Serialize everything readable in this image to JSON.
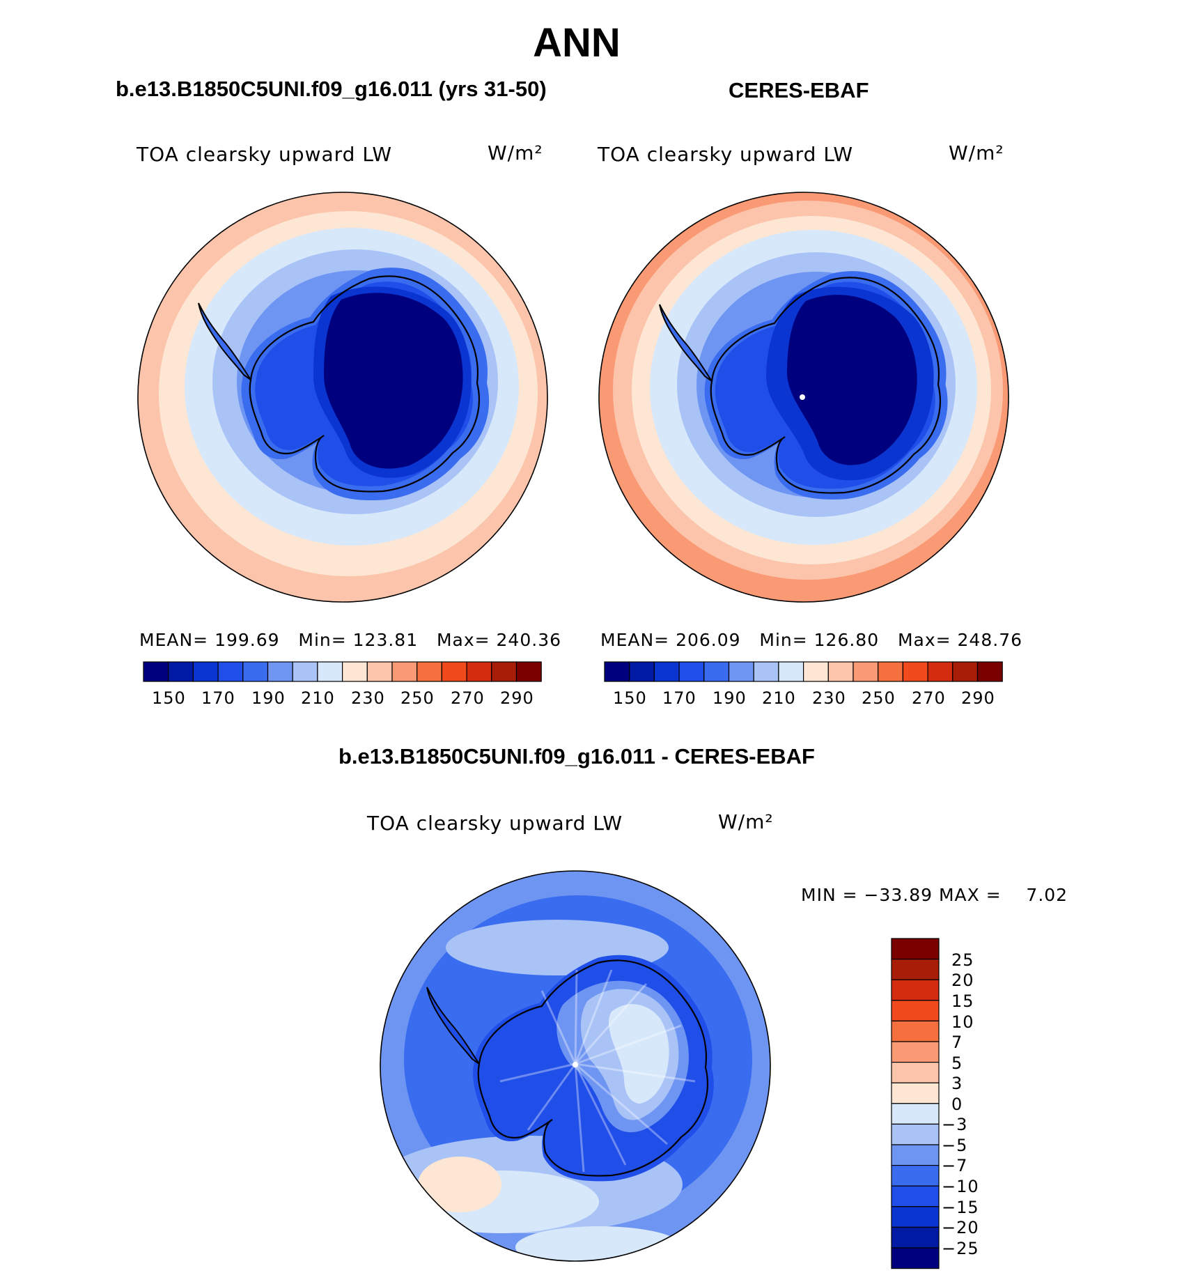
{
  "figure": {
    "title": "ANN",
    "left_case": "b.e13.B1850C5UNI.f09_g16.011 (yrs 31-50)",
    "right_case": "CERES-EBAF",
    "diff_case": "b.e13.B1850C5UNI.f09_g16.011 - CERES-EBAF"
  },
  "panels": [
    {
      "variable": "TOA clearsky upward LW",
      "units": "W/m²",
      "stats": "MEAN= 199.69   Min= 123.81   Max= 240.36"
    },
    {
      "variable": "TOA clearsky upward LW",
      "units": "W/m²",
      "stats": "MEAN= 206.09   Min= 126.80   Max= 248.76"
    },
    {
      "variable": "TOA clearsky upward LW",
      "units": "W/m²",
      "stats": "MIN = −33.89 MAX =    7.02"
    }
  ],
  "colorbars": {
    "absolute": {
      "tick_labels": [
        "150",
        "170",
        "190",
        "210",
        "230",
        "250",
        "270",
        "290"
      ],
      "colors": [
        "#00007f",
        "#001aa4",
        "#0a35d0",
        "#1f4ee8",
        "#3a6cf0",
        "#6f95f2",
        "#a9c3f7",
        "#d8e8fb",
        "#fde6d3",
        "#fbc4ab",
        "#f99a74",
        "#f5703f",
        "#f04a1d",
        "#d42c0e",
        "#a81d08",
        "#7a0000"
      ]
    },
    "difference": {
      "tick_labels": [
        "25",
        "20",
        "15",
        "10",
        "7",
        "5",
        "3",
        "0",
        "−3",
        "−5",
        "−7",
        "−10",
        "−15",
        "−20",
        "−25"
      ],
      "colors": [
        "#7a0000",
        "#a81d08",
        "#d42c0e",
        "#f04a1d",
        "#f5703f",
        "#f99a74",
        "#fbc4ab",
        "#fde6d3",
        "#d8e8fb",
        "#a9c3f7",
        "#6f95f2",
        "#3a6cf0",
        "#1f4ee8",
        "#0a35d0",
        "#001aa4",
        "#00007f"
      ]
    }
  }
}
